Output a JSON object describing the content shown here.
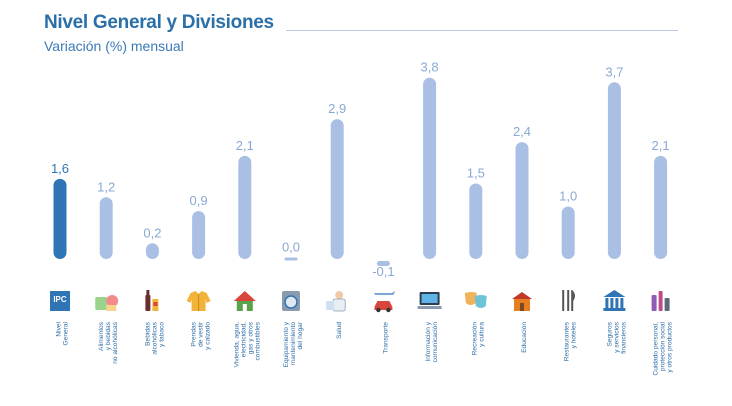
{
  "header": {
    "title": "Nivel General y Divisiones",
    "subtitle": "Variación (%) mensual"
  },
  "colors": {
    "main_bar": "#2f74b5",
    "division_bar": "#a9c0e4",
    "title": "#2a6fa8"
  },
  "chart_data": {
    "type": "bar",
    "title": "Nivel General y Divisiones",
    "subtitle": "Variación (%) mensual",
    "xlabel": "",
    "ylabel": "",
    "ylim": [
      -0.1,
      3.8
    ],
    "grid": false,
    "categories": [
      "Nivel General",
      "Alimentos y bebidas no alcohólicas",
      "Bebidas alcohólicas y tabaco",
      "Prendas de vestir y calzado",
      "Vivienda, agua, electricidad, gas y otros combustibles",
      "Equipamiento y mantenimiento del hogar",
      "Salud",
      "Transporte",
      "Información y comunicación",
      "Recreación y cultura",
      "Educación",
      "Restaurantes y hoteles",
      "Seguros y servicios financieros",
      "Cuidado personal, protección social y otros productos"
    ],
    "values": [
      1.6,
      1.2,
      0.2,
      0.9,
      2.1,
      0.0,
      2.9,
      -0.1,
      3.8,
      1.5,
      2.4,
      1.0,
      3.7,
      2.1
    ],
    "value_labels": [
      "1,6",
      "1,2",
      "0,2",
      "0,9",
      "2,1",
      "0,0",
      "2,9",
      "-0,1",
      "3,8",
      "1,5",
      "2,4",
      "1,0",
      "3,7",
      "2,1"
    ],
    "category_labels": [
      [
        "Nivel",
        "General"
      ],
      [
        "Alimentos",
        "y bebidas",
        "no alcohólicas"
      ],
      [
        "Bebidas",
        "alcohólicas",
        "y tabaco"
      ],
      [
        "Prendas",
        "de vestir",
        "y calzado"
      ],
      [
        "Vivienda, agua,",
        "electricidad,",
        "gas y otros",
        "combustibles"
      ],
      [
        "Equipamiento y",
        "mantenimiento",
        "del hogar"
      ],
      [
        "Salud"
      ],
      [
        "Transporte"
      ],
      [
        "Información y",
        "comunicación"
      ],
      [
        "Recreación",
        "y cultura"
      ],
      [
        "Educación"
      ],
      [
        "Restaurantes",
        "y hoteles"
      ],
      [
        "Seguros",
        "y servicios",
        "financieros"
      ],
      [
        "Cuidado personal,",
        "protección social",
        "y otros productos"
      ]
    ],
    "icons": [
      "ipc-logo-icon",
      "food-icon",
      "bottle-icon",
      "jacket-icon",
      "house-icon",
      "washing-machine-icon",
      "doctor-icon",
      "car-plane-icon",
      "laptop-icon",
      "theater-masks-icon",
      "school-icon",
      "cutlery-icon",
      "bank-icon",
      "toiletries-icon"
    ],
    "icon_text": "IPC"
  }
}
